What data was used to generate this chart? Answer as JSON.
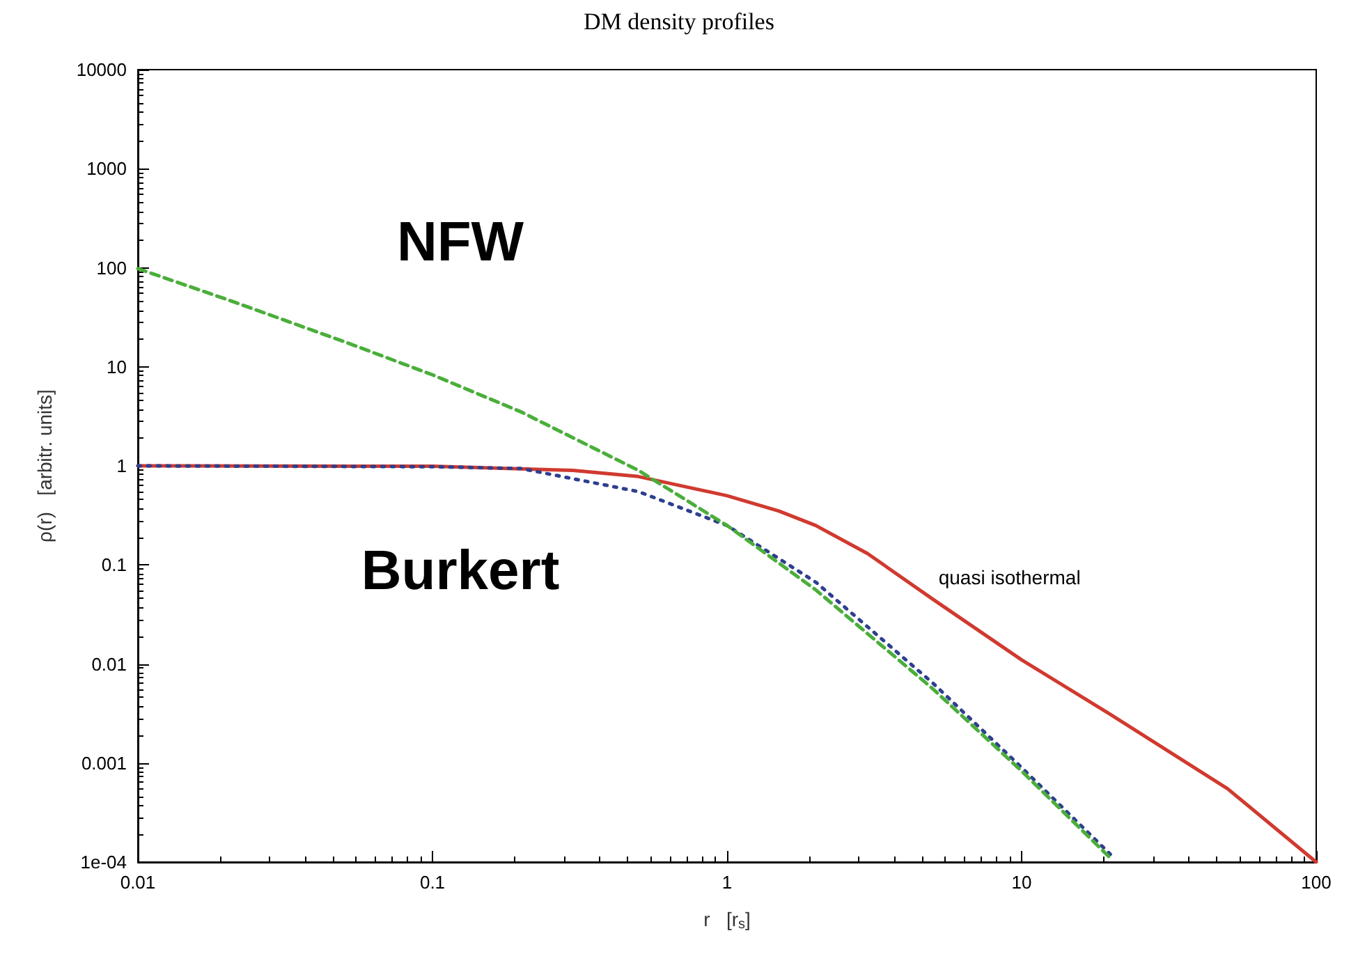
{
  "chart_data": {
    "type": "line",
    "title": "DM density profiles",
    "xlabel": "r   [r$_{s}$]",
    "ylabel": "ρ(r)   [arbitr. units]",
    "log": "xy",
    "grid": false,
    "legend": false,
    "marker": "none",
    "xlim": [
      0.01,
      100
    ],
    "xticks": [
      0.01,
      0.1,
      1,
      10,
      100
    ],
    "ylim": [
      0.0001,
      10000
    ],
    "yticks": [
      {
        "value": 0.0001,
        "label": "1e-04"
      },
      0.001,
      0.01,
      0.1,
      1,
      10,
      100,
      1000,
      10000
    ],
    "series": [
      {
        "name": "NFW",
        "color": "#4aae3a",
        "line_style": "dashed",
        "x": [
          0.01,
          0.02,
          0.05,
          0.1,
          0.2,
          0.5,
          1,
          2,
          5,
          10,
          20
        ],
        "values": [
          98,
          48,
          18,
          8.3,
          3.5,
          0.9,
          0.25,
          0.056,
          0.0056,
          0.00083,
          0.00011
        ]
      },
      {
        "name": "Burkert",
        "color": "#2e3f8f",
        "line_style": "dotted",
        "x": [
          0.01,
          0.1,
          0.2,
          0.5,
          1,
          2,
          5,
          10,
          20
        ],
        "values": [
          1,
          0.98,
          0.94,
          0.55,
          0.25,
          0.067,
          0.0064,
          0.0009,
          0.00012
        ]
      },
      {
        "name": "quasi isothermal",
        "color": "#d03a2f",
        "line_style": "solid",
        "x": [
          0.01,
          0.1,
          0.3,
          0.5,
          1,
          1.5,
          2,
          3,
          5,
          10,
          20,
          50,
          100
        ],
        "values": [
          1,
          0.99,
          0.9,
          0.78,
          0.5,
          0.35,
          0.25,
          0.13,
          0.045,
          0.011,
          0.0031,
          0.00055,
          0.0001
        ]
      }
    ]
  }
}
